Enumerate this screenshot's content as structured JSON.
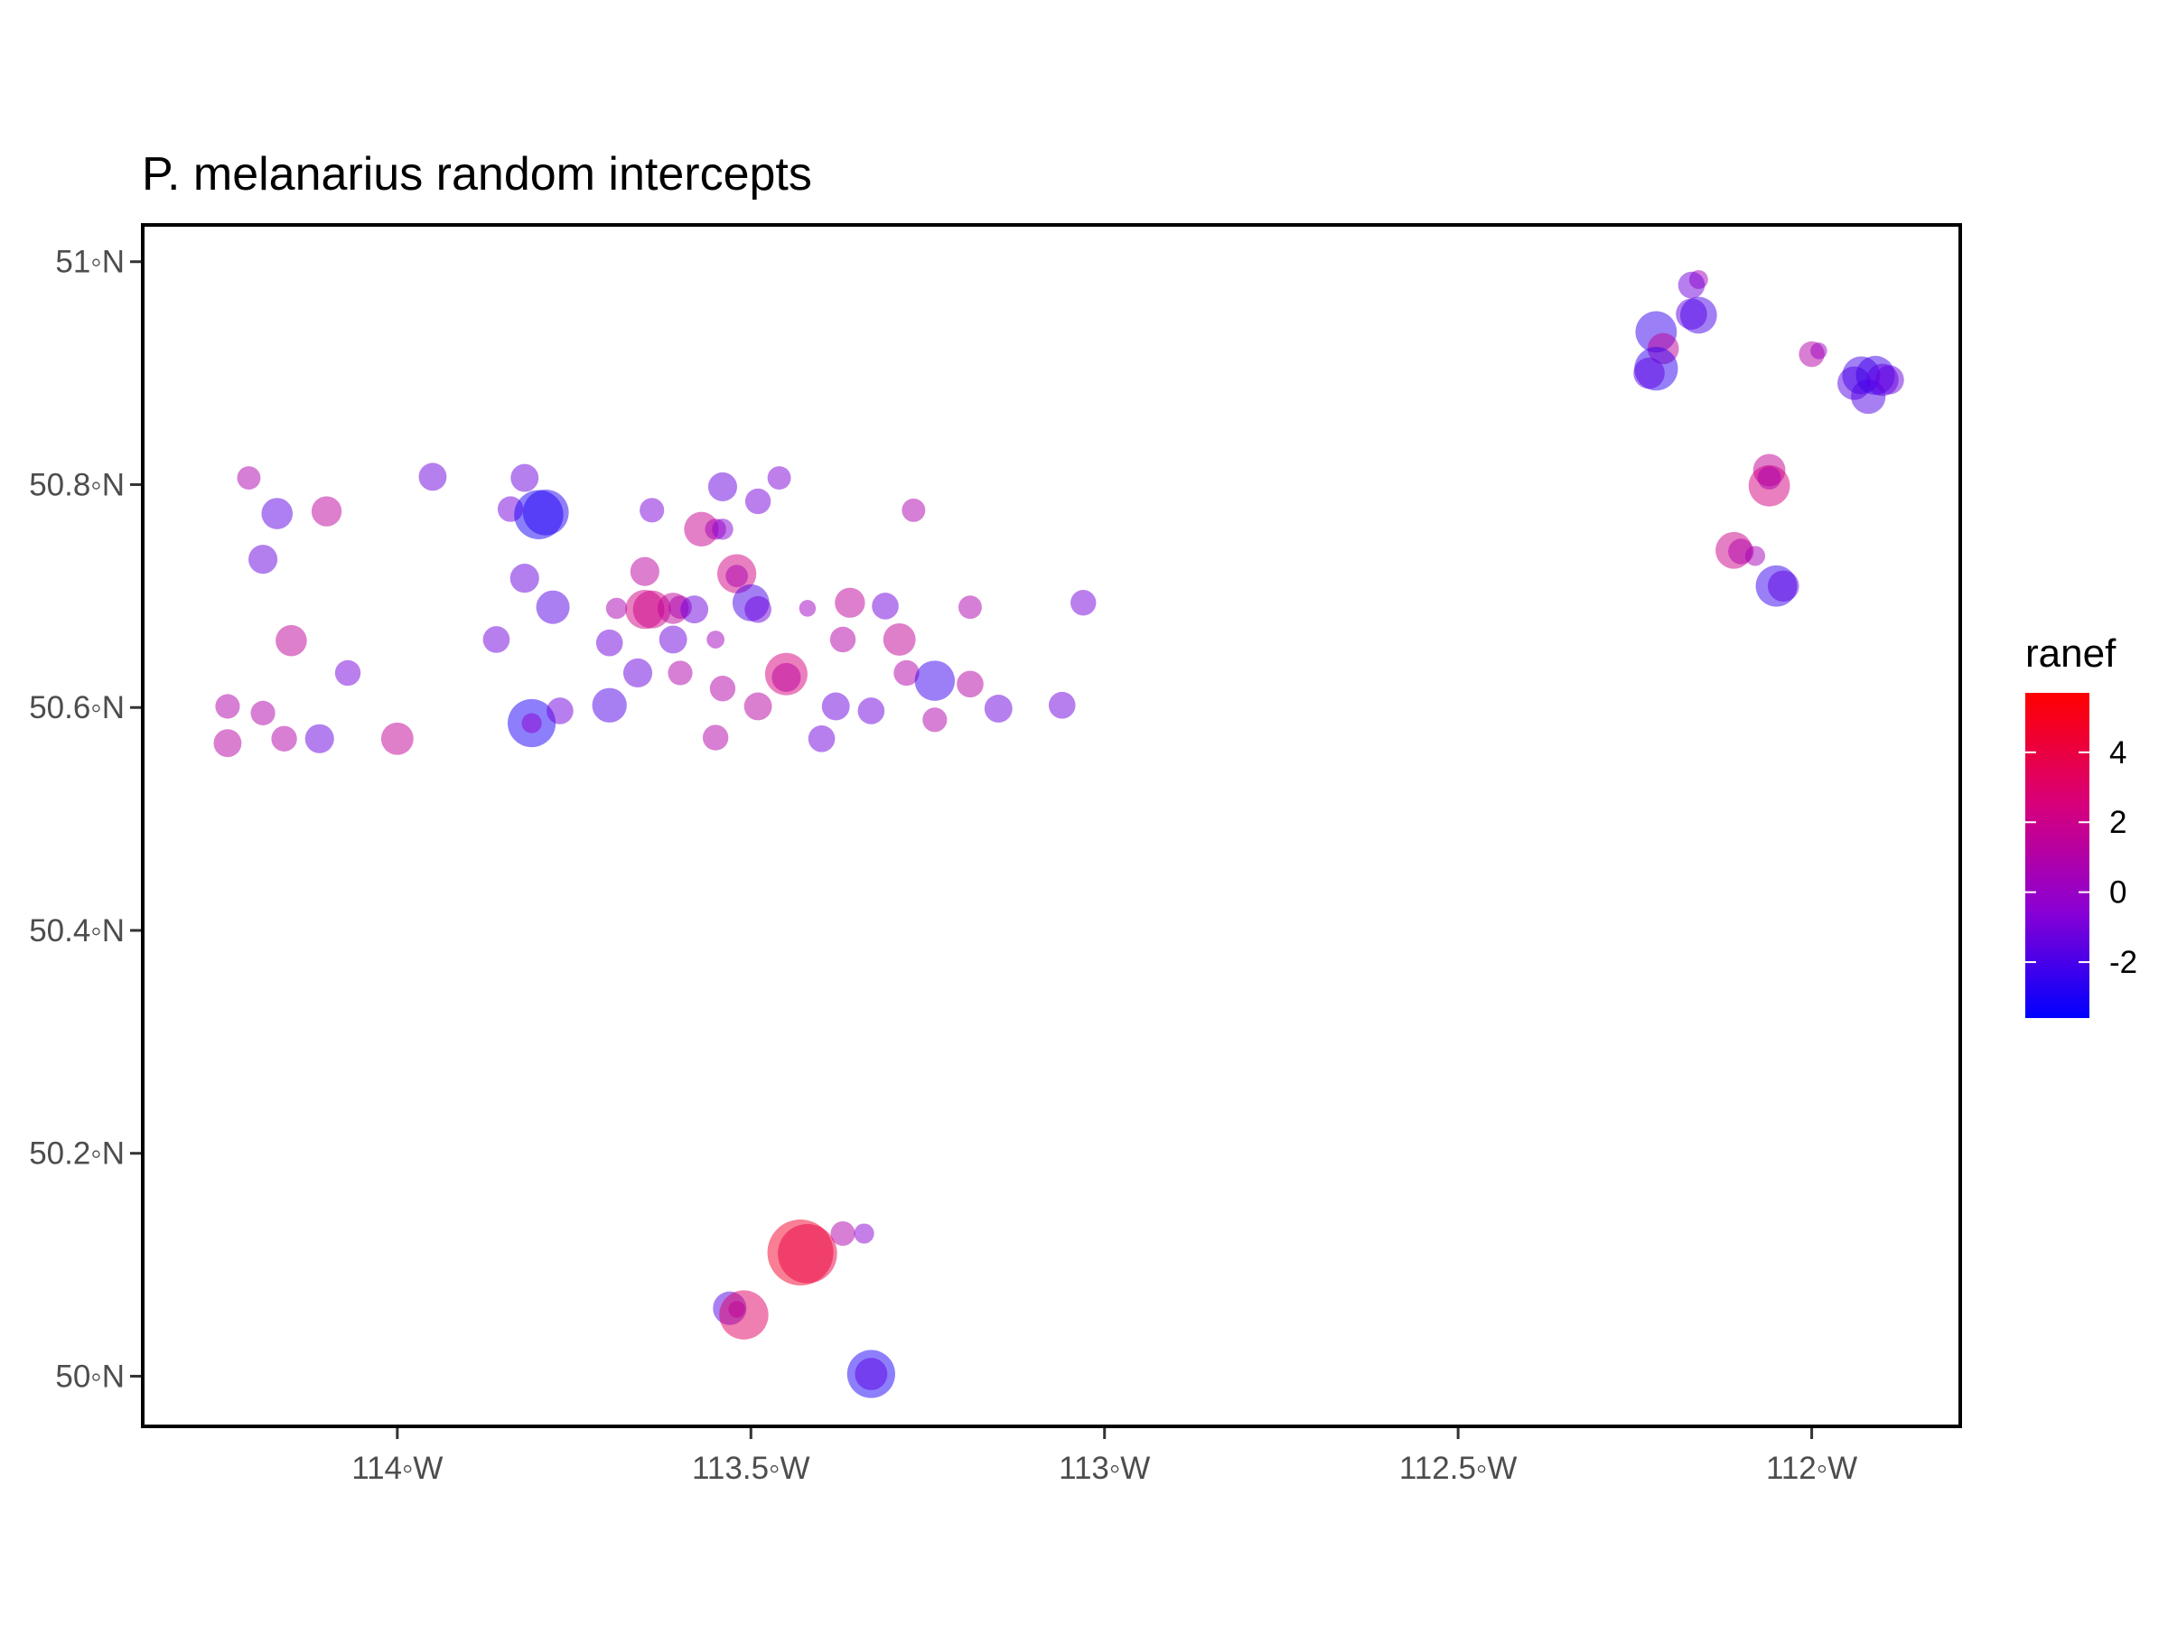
{
  "chart_data": {
    "type": "scatter",
    "title": "P. melanarius random intercepts",
    "xlabel": "",
    "ylabel": "",
    "xlim": [
      -114.36,
      -111.79
    ],
    "ylim": [
      49.955,
      51.033
    ],
    "x_ticks": [
      {
        "value": -114.0,
        "label": "114◦W"
      },
      {
        "value": -113.5,
        "label": "113.5◦W"
      },
      {
        "value": -113.0,
        "label": "113◦W"
      },
      {
        "value": -112.5,
        "label": "112.5◦W"
      },
      {
        "value": -112.0,
        "label": "112◦W"
      }
    ],
    "y_ticks": [
      {
        "value": 50.0,
        "label": "50◦N"
      },
      {
        "value": 50.2,
        "label": "50.2◦N"
      },
      {
        "value": 50.4,
        "label": "50.4◦N"
      },
      {
        "value": 50.6,
        "label": "50.6◦N"
      },
      {
        "value": 50.8,
        "label": "50.8◦N"
      },
      {
        "value": 51.0,
        "label": "51◦N"
      }
    ],
    "grid": false,
    "legend": {
      "title": "ranef",
      "position": "right",
      "type": "colorbar",
      "range": [
        -3.6,
        5.7
      ],
      "ticks": [
        {
          "value": 4,
          "label": "4"
        },
        {
          "value": 2,
          "label": "2"
        },
        {
          "value": 0,
          "label": "0"
        },
        {
          "value": -2,
          "label": "-2"
        }
      ],
      "colors": {
        "low": "#0000ff",
        "high": "#ff0000"
      }
    },
    "points": [
      {
        "x": -114.21,
        "y": 50.806,
        "v": 0.8
      },
      {
        "x": -114.17,
        "y": 50.774,
        "v": -1.5
      },
      {
        "x": -114.1,
        "y": 50.776,
        "v": 1.4
      },
      {
        "x": -114.19,
        "y": 50.733,
        "v": -1.3
      },
      {
        "x": -114.15,
        "y": 50.66,
        "v": 1.5
      },
      {
        "x": -114.07,
        "y": 50.631,
        "v": -1.0
      },
      {
        "x": -114.24,
        "y": 50.601,
        "v": 0.9
      },
      {
        "x": -114.19,
        "y": 50.595,
        "v": 0.9
      },
      {
        "x": -114.24,
        "y": 50.568,
        "v": 1.2
      },
      {
        "x": -114.16,
        "y": 50.572,
        "v": 1.0
      },
      {
        "x": -114.11,
        "y": 50.572,
        "v": -1.3
      },
      {
        "x": -114.0,
        "y": 50.572,
        "v": 1.6
      },
      {
        "x": -113.95,
        "y": 50.807,
        "v": -1.2
      },
      {
        "x": -113.82,
        "y": 50.806,
        "v": -1.2
      },
      {
        "x": -113.84,
        "y": 50.778,
        "v": -1.0
      },
      {
        "x": -113.8,
        "y": 50.773,
        "v": -3.1
      },
      {
        "x": -113.79,
        "y": 50.775,
        "v": -2.8
      },
      {
        "x": -113.82,
        "y": 50.716,
        "v": -1.3
      },
      {
        "x": -113.78,
        "y": 50.69,
        "v": -1.7
      },
      {
        "x": -113.86,
        "y": 50.661,
        "v": -1.1
      },
      {
        "x": -113.81,
        "y": 50.586,
        "v": -3.0
      },
      {
        "x": -113.81,
        "y": 50.586,
        "v": -0.5
      },
      {
        "x": -113.77,
        "y": 50.597,
        "v": -1.1
      },
      {
        "x": -113.7,
        "y": 50.602,
        "v": -1.8
      },
      {
        "x": -113.69,
        "y": 50.689,
        "v": 0.6
      },
      {
        "x": -113.7,
        "y": 50.658,
        "v": -1.1
      },
      {
        "x": -113.66,
        "y": 50.631,
        "v": -1.3
      },
      {
        "x": -113.64,
        "y": 50.777,
        "v": -0.9
      },
      {
        "x": -113.65,
        "y": 50.722,
        "v": 1.3
      },
      {
        "x": -113.65,
        "y": 50.688,
        "v": 2.2
      },
      {
        "x": -113.64,
        "y": 50.688,
        "v": 2.1
      },
      {
        "x": -113.61,
        "y": 50.689,
        "v": 1.5
      },
      {
        "x": -113.6,
        "y": 50.69,
        "v": 0.8
      },
      {
        "x": -113.58,
        "y": 50.688,
        "v": -1.2
      },
      {
        "x": -113.61,
        "y": 50.661,
        "v": -1.2
      },
      {
        "x": -113.6,
        "y": 50.631,
        "v": 0.9
      },
      {
        "x": -113.57,
        "y": 50.76,
        "v": 1.8
      },
      {
        "x": -113.55,
        "y": 50.76,
        "v": 0.6
      },
      {
        "x": -113.54,
        "y": 50.76,
        "v": -0.6
      },
      {
        "x": -113.54,
        "y": 50.798,
        "v": -1.3
      },
      {
        "x": -113.49,
        "y": 50.785,
        "v": -1.0
      },
      {
        "x": -113.46,
        "y": 50.806,
        "v": -0.8
      },
      {
        "x": -113.52,
        "y": 50.72,
        "v": 2.2
      },
      {
        "x": -113.52,
        "y": 50.718,
        "v": 0.7
      },
      {
        "x": -113.5,
        "y": 50.694,
        "v": -2.0
      },
      {
        "x": -113.49,
        "y": 50.688,
        "v": -1.1
      },
      {
        "x": -113.55,
        "y": 50.661,
        "v": 0.3
      },
      {
        "x": -113.54,
        "y": 50.617,
        "v": 1.0
      },
      {
        "x": -113.49,
        "y": 50.601,
        "v": 1.2
      },
      {
        "x": -113.55,
        "y": 50.573,
        "v": 1.0
      },
      {
        "x": -113.45,
        "y": 50.63,
        "v": 2.5
      },
      {
        "x": -113.45,
        "y": 50.627,
        "v": 1.3
      },
      {
        "x": -113.42,
        "y": 50.689,
        "v": 0.2
      },
      {
        "x": -113.4,
        "y": 50.572,
        "v": -1.1
      },
      {
        "x": -113.38,
        "y": 50.601,
        "v": -1.2
      },
      {
        "x": -113.37,
        "y": 50.661,
        "v": 1.0
      },
      {
        "x": -113.36,
        "y": 50.694,
        "v": 1.4
      },
      {
        "x": -113.33,
        "y": 50.597,
        "v": -1.1
      },
      {
        "x": -113.31,
        "y": 50.691,
        "v": -1.1
      },
      {
        "x": -113.29,
        "y": 50.661,
        "v": 1.6
      },
      {
        "x": -113.28,
        "y": 50.631,
        "v": 1.0
      },
      {
        "x": -113.27,
        "y": 50.777,
        "v": 0.8
      },
      {
        "x": -113.24,
        "y": 50.624,
        "v": -2.3
      },
      {
        "x": -113.24,
        "y": 50.589,
        "v": 0.9
      },
      {
        "x": -113.19,
        "y": 50.69,
        "v": 0.8
      },
      {
        "x": -113.19,
        "y": 50.621,
        "v": 1.1
      },
      {
        "x": -113.15,
        "y": 50.599,
        "v": -1.2
      },
      {
        "x": -113.06,
        "y": 50.602,
        "v": -1.1
      },
      {
        "x": -113.03,
        "y": 50.694,
        "v": -1.0
      },
      {
        "x": -113.37,
        "y": 50.128,
        "v": 0.9
      },
      {
        "x": -113.34,
        "y": 50.128,
        "v": -0.5
      },
      {
        "x": -113.43,
        "y": 50.111,
        "v": 4.6
      },
      {
        "x": -113.42,
        "y": 50.11,
        "v": 4.0
      },
      {
        "x": -113.53,
        "y": 50.061,
        "v": -1.7
      },
      {
        "x": -113.52,
        "y": 50.06,
        "v": 0.2
      },
      {
        "x": -113.51,
        "y": 50.055,
        "v": 3.1
      },
      {
        "x": -113.33,
        "y": 50.002,
        "v": -3.0
      },
      {
        "x": -113.33,
        "y": 50.002,
        "v": -1.6
      },
      {
        "x": -112.16,
        "y": 50.984,
        "v": 0.4
      },
      {
        "x": -112.17,
        "y": 50.979,
        "v": -1.1
      },
      {
        "x": -112.17,
        "y": 50.953,
        "v": -1.5
      },
      {
        "x": -112.16,
        "y": 50.952,
        "v": -2.0
      },
      {
        "x": -112.22,
        "y": 50.937,
        "v": -2.4
      },
      {
        "x": -112.21,
        "y": 50.922,
        "v": 1.5
      },
      {
        "x": -112.22,
        "y": 50.904,
        "v": -2.6
      },
      {
        "x": -112.23,
        "y": 50.9,
        "v": -1.5
      },
      {
        "x": -112.0,
        "y": 50.917,
        "v": 1.0
      },
      {
        "x": -111.99,
        "y": 50.92,
        "v": 0.2
      },
      {
        "x": -111.94,
        "y": 50.891,
        "v": -1.7
      },
      {
        "x": -111.93,
        "y": 50.898,
        "v": -2.1
      },
      {
        "x": -111.92,
        "y": 50.879,
        "v": -1.8
      },
      {
        "x": -111.91,
        "y": 50.898,
        "v": -2.2
      },
      {
        "x": -111.9,
        "y": 50.894,
        "v": -1.6
      },
      {
        "x": -111.89,
        "y": 50.894,
        "v": -1.3
      },
      {
        "x": -112.06,
        "y": 50.813,
        "v": 1.6
      },
      {
        "x": -112.06,
        "y": 50.799,
        "v": 2.4
      },
      {
        "x": -112.06,
        "y": 50.806,
        "v": 0.8
      },
      {
        "x": -112.11,
        "y": 50.741,
        "v": 2.0
      },
      {
        "x": -112.1,
        "y": 50.74,
        "v": 1.0
      },
      {
        "x": -112.08,
        "y": 50.736,
        "v": 0.5
      },
      {
        "x": -112.05,
        "y": 50.709,
        "v": -2.4
      },
      {
        "x": -112.04,
        "y": 50.709,
        "v": -1.5
      }
    ]
  }
}
